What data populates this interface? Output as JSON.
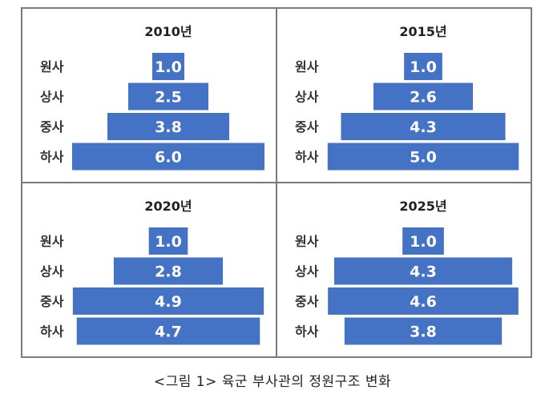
{
  "caption": "<그림 1> 육군 부사관의 정원구조 변화",
  "chart_data": [
    {
      "type": "bar",
      "title": "2010년",
      "categories": [
        "원사",
        "상사",
        "중사",
        "하사"
      ],
      "values": [
        1.0,
        2.5,
        3.8,
        6.0
      ],
      "labels": [
        "1.0",
        "2.5",
        "3.8",
        "6.0"
      ],
      "xlim": [
        0,
        6.2
      ],
      "grid": false,
      "orientation": "horizontal-centered"
    },
    {
      "type": "bar",
      "title": "2015년",
      "categories": [
        "원사",
        "상사",
        "중사",
        "하사"
      ],
      "values": [
        1.0,
        2.6,
        4.3,
        5.0
      ],
      "labels": [
        "1.0",
        "2.6",
        "4.3",
        "5.0"
      ],
      "xlim": [
        0,
        5.2
      ],
      "grid": false,
      "orientation": "horizontal-centered"
    },
    {
      "type": "bar",
      "title": "2020년",
      "categories": [
        "원사",
        "상사",
        "중사",
        "하사"
      ],
      "values": [
        1.0,
        2.8,
        4.9,
        4.7
      ],
      "labels": [
        "1.0",
        "2.8",
        "4.9",
        "4.7"
      ],
      "xlim": [
        0,
        5.1
      ],
      "grid": false,
      "orientation": "horizontal-centered"
    },
    {
      "type": "bar",
      "title": "2025년",
      "categories": [
        "원사",
        "상사",
        "중사",
        "하사"
      ],
      "values": [
        1.0,
        4.3,
        4.6,
        3.8
      ],
      "labels": [
        "1.0",
        "4.3",
        "4.6",
        "3.8"
      ],
      "xlim": [
        0,
        4.8
      ],
      "grid": false,
      "orientation": "horizontal-centered"
    }
  ],
  "colors": {
    "bar": "#4472c4",
    "bar_text": "#ffffff",
    "border": "#7a7a7a"
  }
}
